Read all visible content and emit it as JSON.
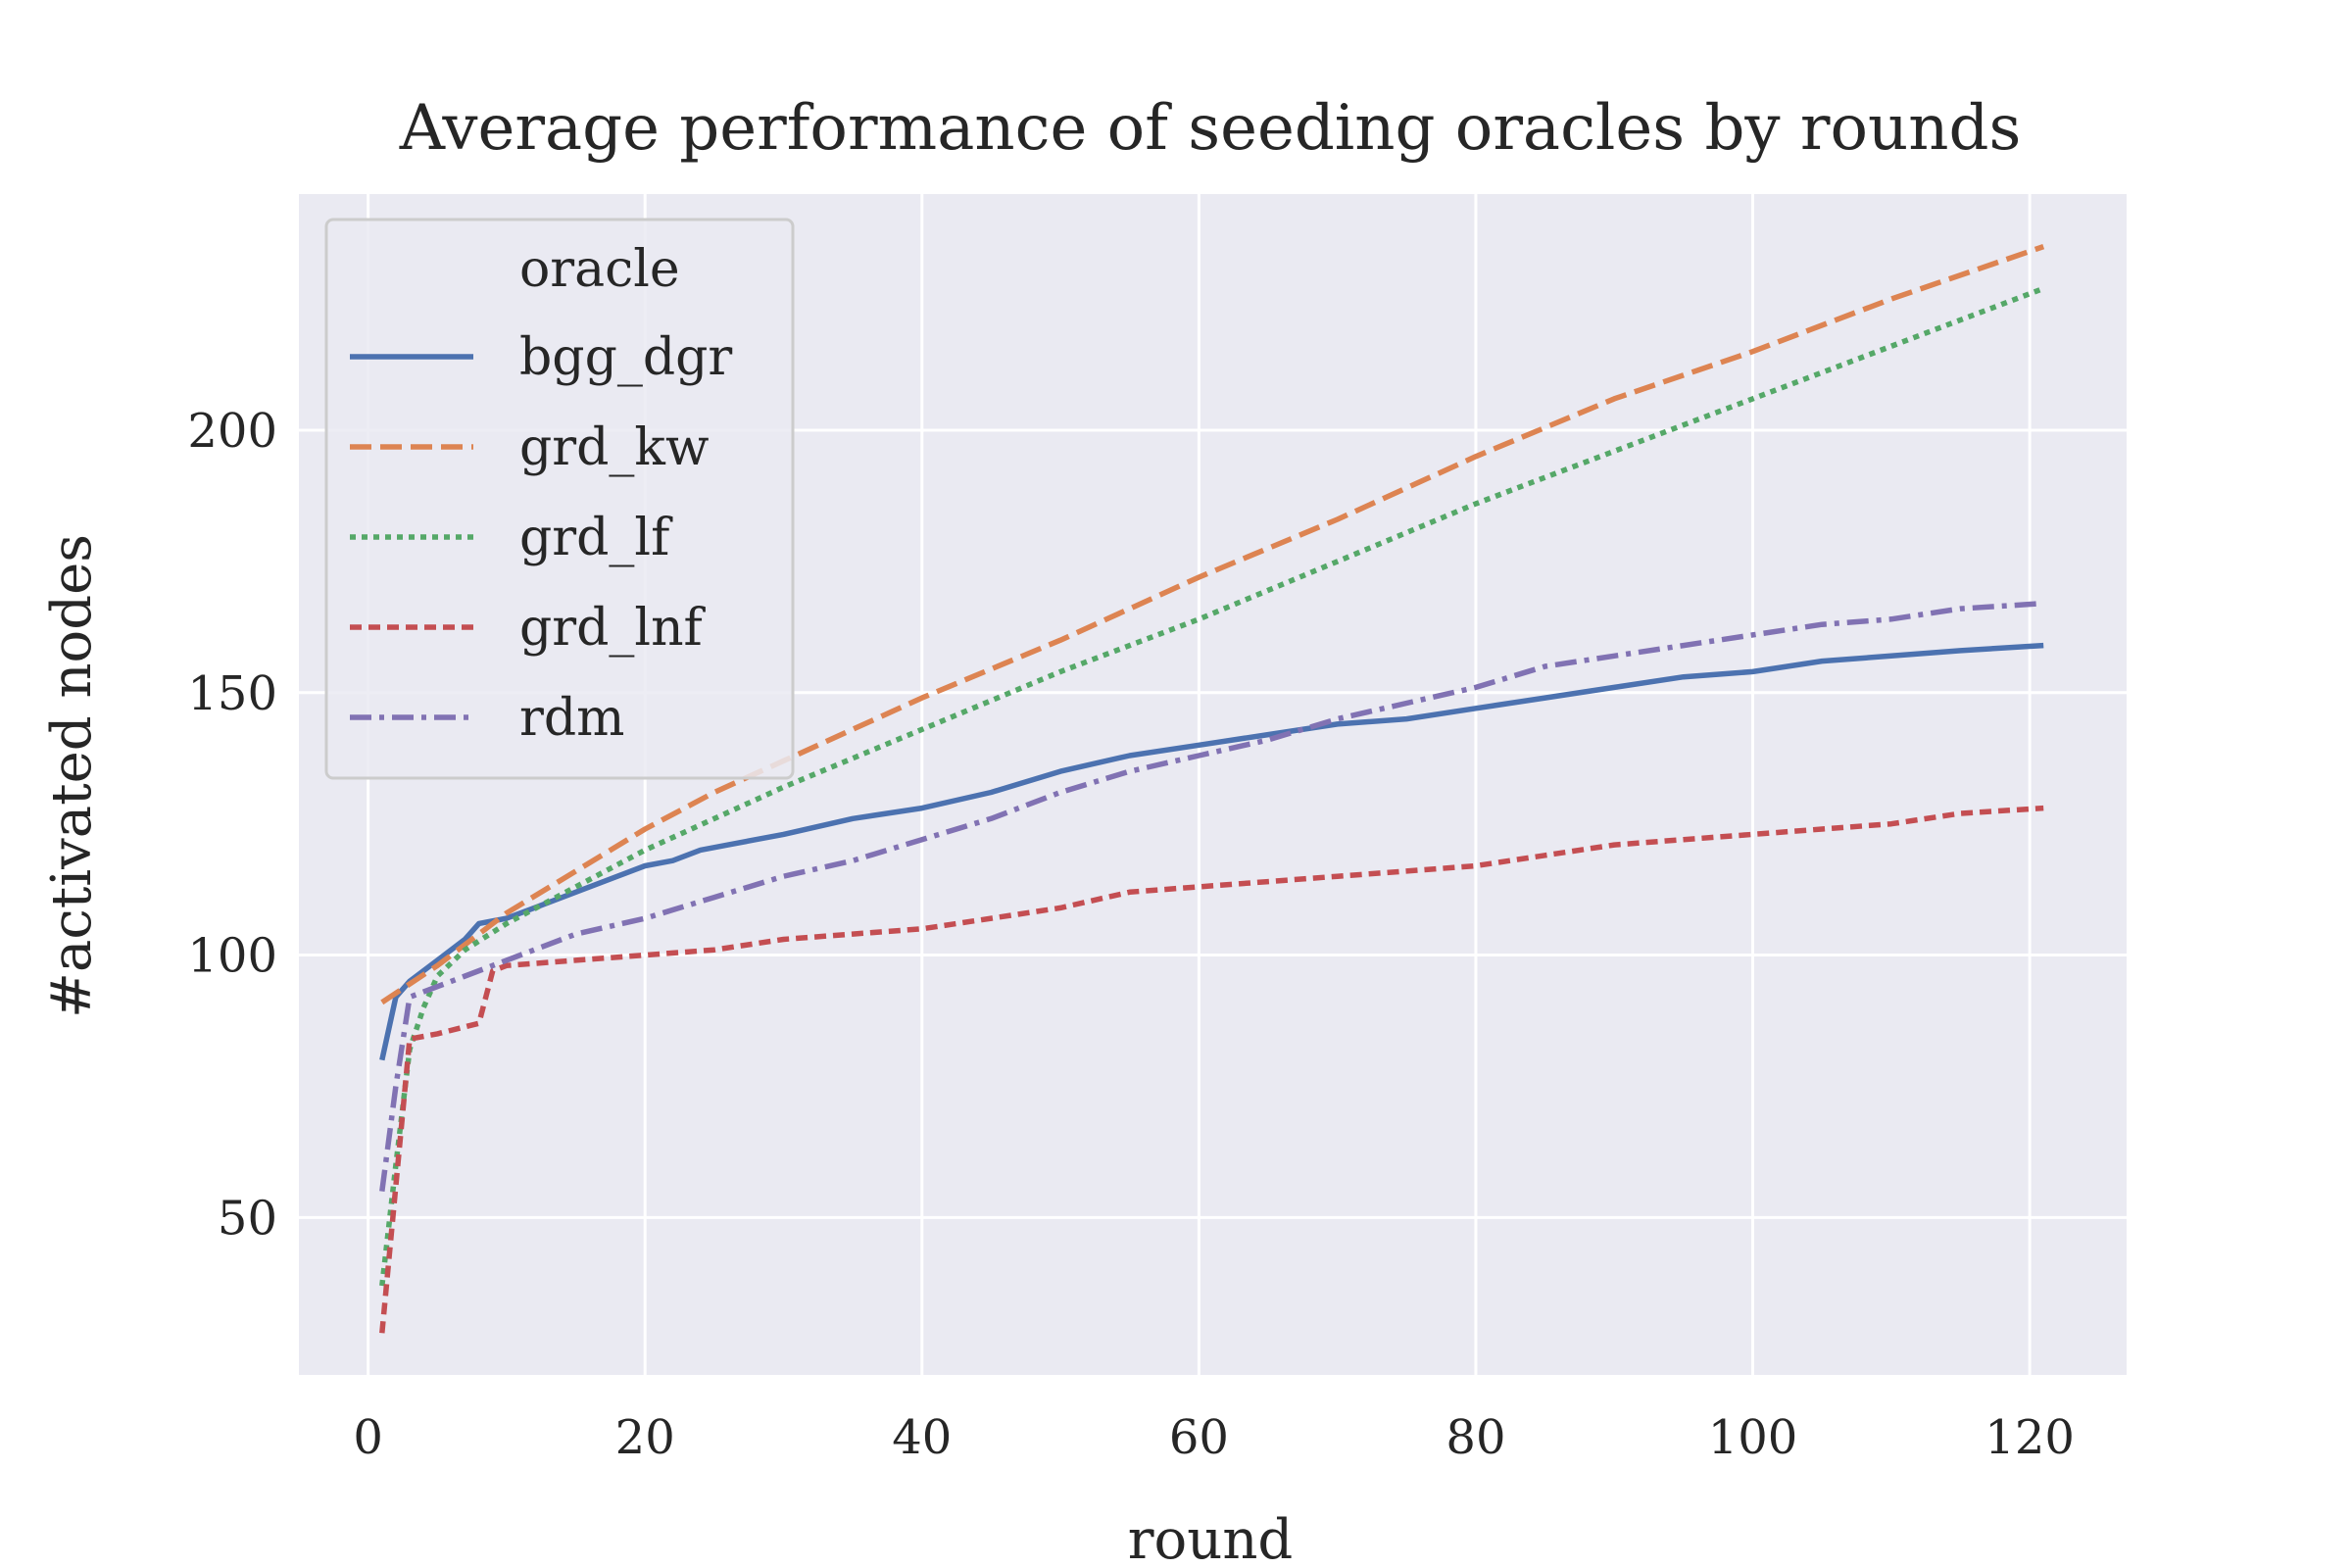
{
  "chart_data": {
    "type": "line",
    "title": "Average performance of seeding oracles by rounds",
    "xlabel": "round",
    "ylabel": "#activated nodes",
    "xlim": [
      -5,
      127
    ],
    "ylim": [
      20,
      245
    ],
    "xticks": [
      0,
      20,
      40,
      60,
      80,
      100,
      120
    ],
    "yticks": [
      50,
      100,
      150,
      200
    ],
    "grid": true,
    "legend": {
      "title": "oracle",
      "placement": "top-left"
    },
    "series": [
      {
        "name": "bgg_dgr",
        "color": "#4c72b0",
        "dash": "solid",
        "x": [
          1,
          2,
          3,
          5,
          7,
          8,
          10,
          12,
          15,
          18,
          20,
          22,
          24,
          26,
          28,
          30,
          35,
          40,
          45,
          50,
          55,
          60,
          65,
          70,
          75,
          80,
          85,
          90,
          95,
          100,
          105,
          110,
          115,
          121
        ],
        "y": [
          80,
          92,
          95,
          99,
          103,
          106,
          107,
          109,
          112,
          115,
          117,
          118,
          120,
          121,
          122,
          123,
          126,
          128,
          131,
          135,
          138,
          140,
          142,
          144,
          145,
          147,
          149,
          151,
          153,
          154,
          156,
          157,
          158,
          159
        ]
      },
      {
        "name": "grd_kw",
        "color": "#dd8452",
        "dash": "dashed",
        "x": [
          1,
          5,
          10,
          15,
          20,
          25,
          30,
          40,
          50,
          60,
          70,
          80,
          90,
          100,
          110,
          121
        ],
        "y": [
          91,
          98,
          108,
          116,
          124,
          131,
          137,
          149,
          160,
          172,
          183,
          195,
          206,
          215,
          225,
          235
        ]
      },
      {
        "name": "grd_lf",
        "color": "#55a868",
        "dash": "dotted",
        "x": [
          1,
          2,
          3,
          4,
          5,
          7,
          10,
          15,
          20,
          25,
          30,
          40,
          50,
          60,
          70,
          80,
          90,
          100,
          110,
          121
        ],
        "y": [
          37,
          60,
          82,
          90,
          96,
          101,
          106,
          113,
          120,
          126,
          132,
          143,
          154,
          164,
          175,
          186,
          196,
          206,
          216,
          227
        ]
      },
      {
        "name": "grd_lnf",
        "color": "#c44e52",
        "dash": "densely-dashed",
        "x": [
          1,
          3,
          5,
          8,
          9,
          10,
          15,
          20,
          25,
          30,
          35,
          40,
          45,
          50,
          55,
          60,
          65,
          70,
          75,
          80,
          85,
          90,
          95,
          100,
          105,
          110,
          115,
          121
        ],
        "y": [
          28,
          84,
          85,
          87,
          97,
          98,
          99,
          100,
          101,
          103,
          104,
          105,
          107,
          109,
          112,
          113,
          114,
          115,
          116,
          117,
          119,
          121,
          122,
          123,
          124,
          125,
          127,
          128
        ]
      },
      {
        "name": "rdm",
        "color": "#8172b3",
        "dash": "dashdot",
        "x": [
          1,
          2,
          3,
          5,
          7,
          10,
          15,
          20,
          25,
          30,
          35,
          40,
          45,
          50,
          55,
          60,
          65,
          70,
          75,
          80,
          85,
          90,
          95,
          100,
          105,
          110,
          115,
          121
        ],
        "y": [
          55,
          75,
          92,
          94,
          96,
          99,
          104,
          107,
          111,
          115,
          118,
          122,
          126,
          131,
          135,
          138,
          141,
          145,
          148,
          151,
          155,
          157,
          159,
          161,
          163,
          164,
          166,
          167
        ]
      }
    ]
  }
}
